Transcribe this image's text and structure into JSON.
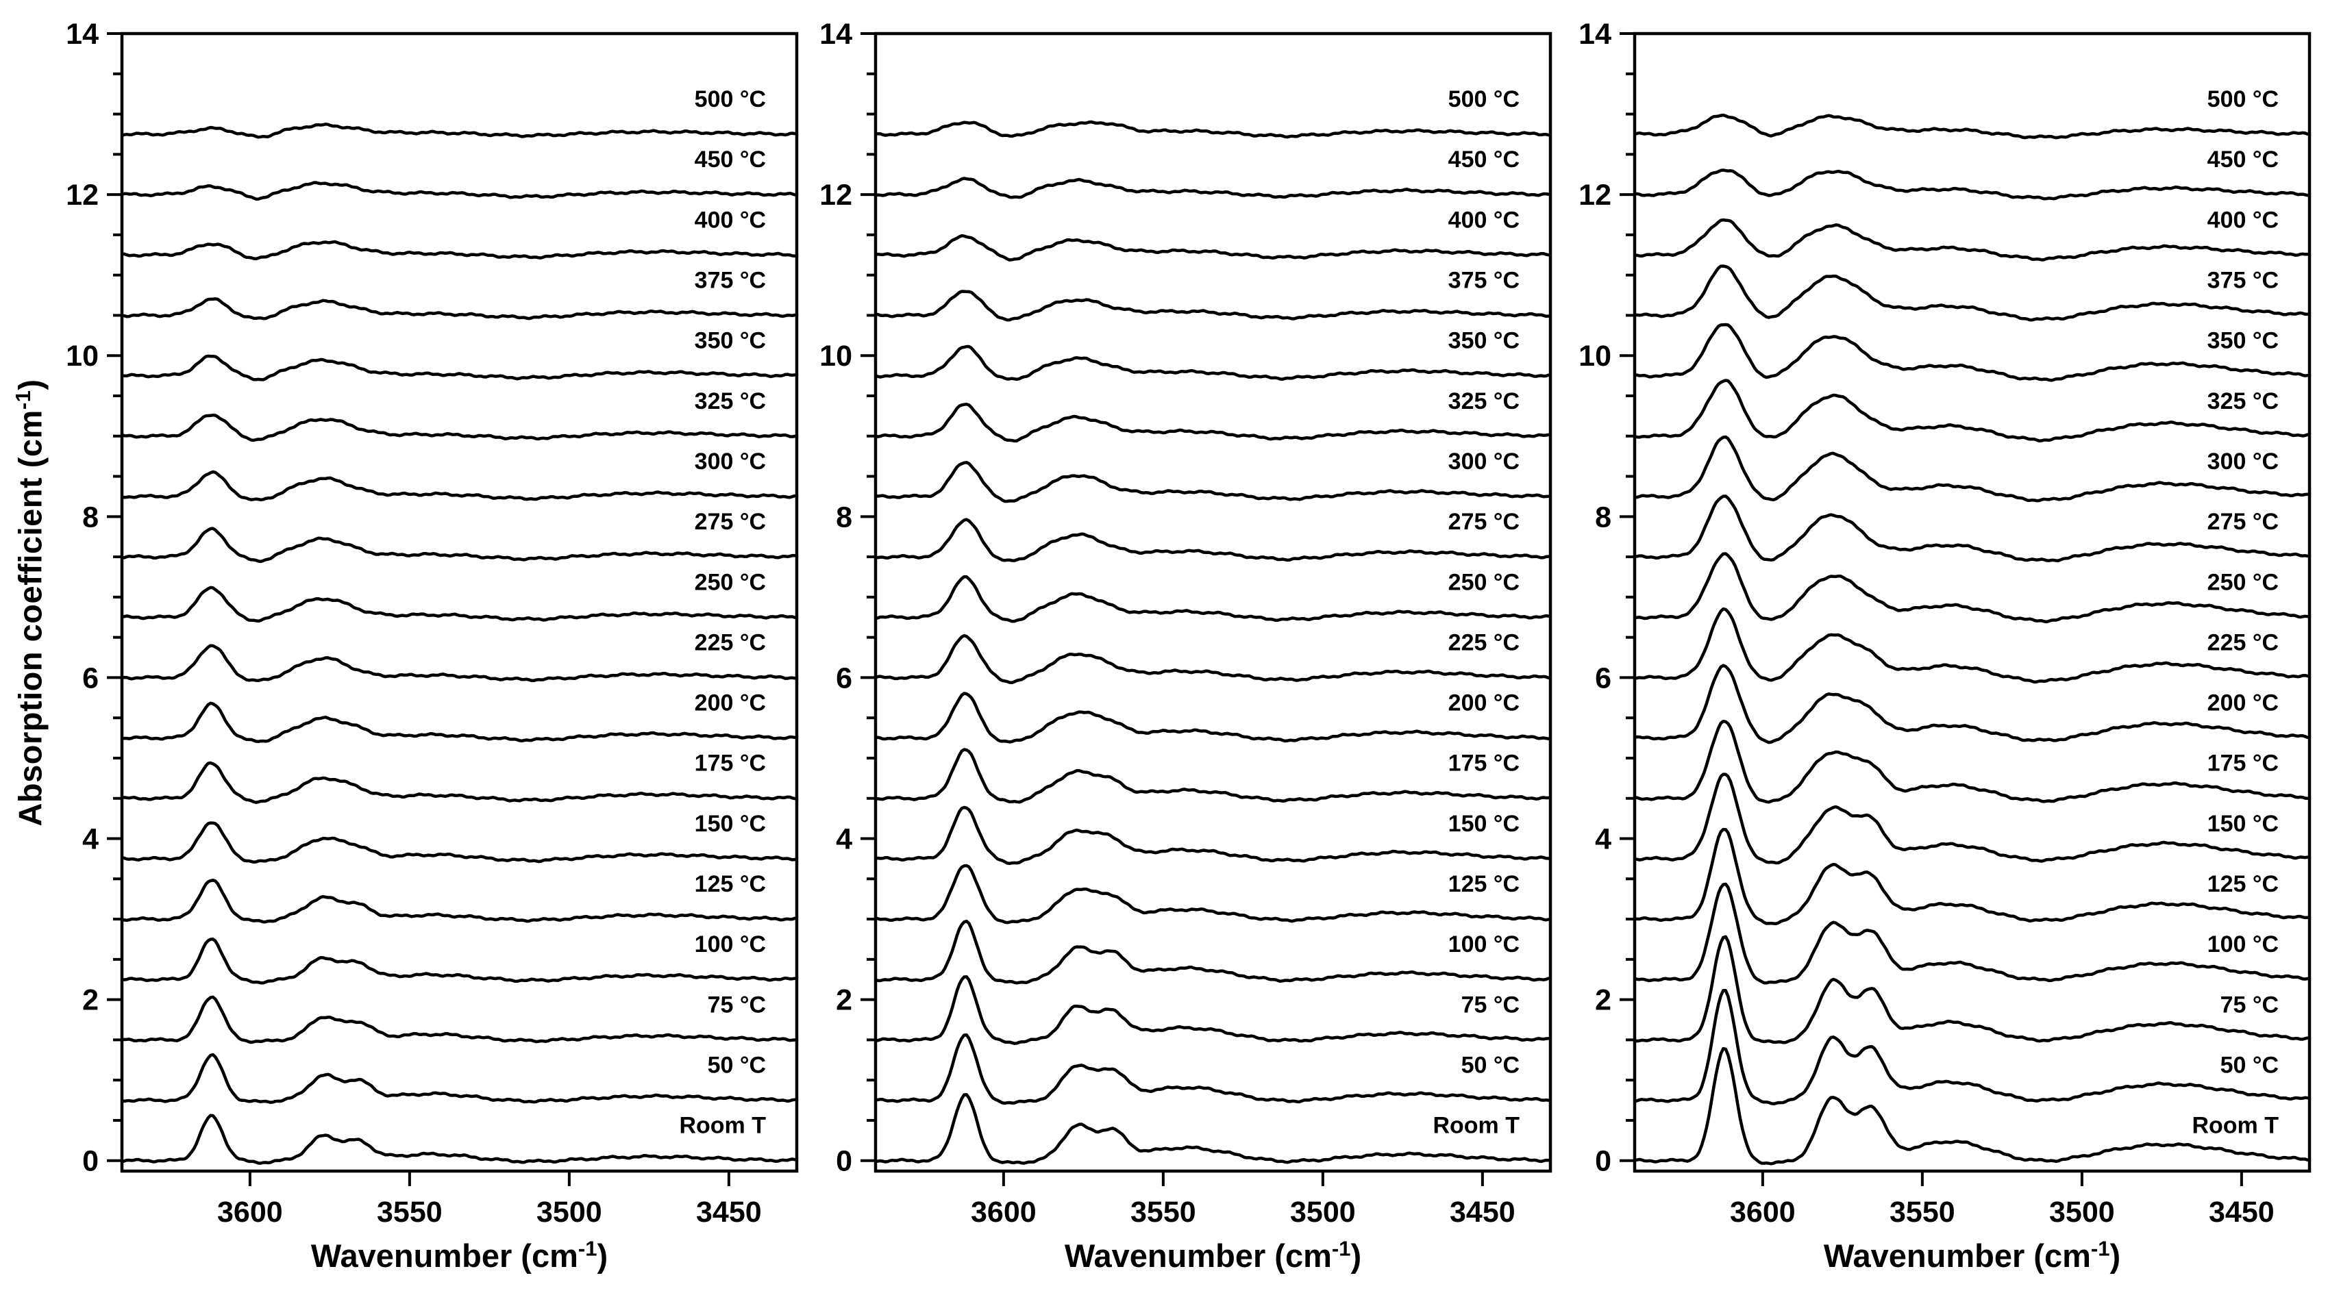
{
  "figure": {
    "background": "#ffffff",
    "text_color": "#000000",
    "ylabel": {
      "prefix": "Absorption coefficient (cm",
      "sup": "-1",
      "suffix": ")"
    },
    "xlabel": {
      "prefix": "Wavenumber (cm",
      "sup": "-1",
      "suffix": ")"
    }
  },
  "chart_data": {
    "type": "line",
    "title": "",
    "xlabel": "Wavenumber (cm⁻¹)",
    "ylabel": "Absorption coefficient (cm⁻¹)",
    "line_color": "#000000",
    "legend_position": "none",
    "grid": false,
    "x_axis": {
      "reversed": true,
      "range": [
        3640,
        3429
      ],
      "ticks": [
        3600,
        3550,
        3500,
        3450
      ],
      "minor_ticks": false
    },
    "y_axis": {
      "range": [
        -0.13,
        14
      ],
      "ticks": [
        0,
        2,
        4,
        6,
        8,
        10,
        12,
        14
      ],
      "minor_step": 0.5
    },
    "temperatures": [
      "Room T",
      "50 °C",
      "75 °C",
      "100 °C",
      "125 °C",
      "150 °C",
      "175 °C",
      "200 °C",
      "225 °C",
      "250 °C",
      "275 °C",
      "300 °C",
      "325 °C",
      "350 °C",
      "375 °C",
      "400 °C",
      "450 °C",
      "500 °C"
    ],
    "offset_step": 0.75,
    "curve_model": "y = offset + sum_components h*exp(-((x-center)/width)^2)",
    "panels": [
      {
        "id": "panel-1",
        "components": [
          {
            "name": "peak-3612",
            "center": 3612,
            "widths": [
              5,
              5,
              5,
              5,
              5.5,
              5.5,
              5.5,
              5.5,
              6,
              6,
              6,
              6,
              6.5,
              6.5,
              6.5,
              7.5,
              8,
              8.5
            ],
            "heights": [
              0.55,
              0.56,
              0.54,
              0.5,
              0.48,
              0.46,
              0.44,
              0.42,
              0.4,
              0.37,
              0.34,
              0.3,
              0.27,
              0.24,
              0.2,
              0.14,
              0.1,
              0.07
            ]
          },
          {
            "name": "dip-3597",
            "center": 3597,
            "width": 6,
            "heights": [
              -0.02,
              -0.02,
              -0.02,
              -0.03,
              -0.03,
              -0.04,
              -0.04,
              -0.05,
              -0.05,
              -0.05,
              -0.06,
              -0.06,
              -0.06,
              -0.06,
              -0.06,
              -0.06,
              -0.06,
              -0.05
            ]
          },
          {
            "name": "peak-3577",
            "center": 3577,
            "widths": [
              6.5,
              6.5,
              6.5,
              7,
              8,
              9,
              10,
              11,
              11,
              12,
              12,
              12,
              12.5,
              13,
              13,
              13,
              13.5,
              14
            ],
            "heights": [
              0.3,
              0.3,
              0.28,
              0.26,
              0.26,
              0.25,
              0.25,
              0.24,
              0.24,
              0.23,
              0.22,
              0.22,
              0.21,
              0.19,
              0.17,
              0.16,
              0.14,
              0.11
            ]
          },
          {
            "name": "peak-3566",
            "center": 3566,
            "width": 6,
            "heights": [
              0.22,
              0.22,
              0.2,
              0.18,
              0.14,
              0.1,
              0.06,
              0.04,
              0,
              0,
              0,
              0,
              0,
              0,
              0,
              0,
              0,
              0
            ]
          },
          {
            "name": "shoulder-3543",
            "center": 3543,
            "width": 18,
            "heights": [
              0.08,
              0.08,
              0.07,
              0.06,
              0.05,
              0.05,
              0.04,
              0.04,
              0.03,
              0.03,
              0.03,
              0.03,
              0.02,
              0.02,
              0.02,
              0.02,
              0.02,
              0.02
            ]
          },
          {
            "name": "broad-3474",
            "center": 3474,
            "width": 26,
            "heights": [
              0.05,
              0.05,
              0.05,
              0.05,
              0.05,
              0.05,
              0.05,
              0.05,
              0.04,
              0.04,
              0.04,
              0.04,
              0.04,
              0.04,
              0.04,
              0.04,
              0.03,
              0.03
            ]
          },
          {
            "name": "dip-3512",
            "center": 3512,
            "width": 16,
            "heights": [
              -0.02,
              -0.02,
              -0.02,
              -0.02,
              -0.02,
              -0.03,
              -0.03,
              -0.03,
              -0.03,
              -0.03,
              -0.03,
              -0.03,
              -0.03,
              -0.03,
              -0.03,
              -0.03,
              -0.03,
              -0.02
            ]
          }
        ]
      },
      {
        "id": "panel-2",
        "components": [
          {
            "name": "peak-3612",
            "center": 3612,
            "widths": [
              5,
              5,
              5,
              5,
              5.5,
              5.5,
              5.5,
              5.5,
              6,
              6,
              6,
              6,
              6.5,
              6.5,
              6.5,
              7.5,
              8,
              8.5
            ],
            "heights": [
              0.82,
              0.82,
              0.78,
              0.72,
              0.68,
              0.64,
              0.6,
              0.56,
              0.52,
              0.49,
              0.46,
              0.43,
              0.39,
              0.36,
              0.31,
              0.23,
              0.19,
              0.15
            ]
          },
          {
            "name": "dip-3597",
            "center": 3597,
            "width": 6,
            "heights": [
              -0.03,
              -0.03,
              -0.03,
              -0.04,
              -0.04,
              -0.05,
              -0.05,
              -0.06,
              -0.06,
              -0.06,
              -0.07,
              -0.07,
              -0.07,
              -0.07,
              -0.07,
              -0.07,
              -0.06,
              -0.05
            ]
          },
          {
            "name": "peak-3577",
            "center": 3577,
            "widths": [
              6.5,
              6.5,
              6.5,
              7,
              8,
              9,
              10,
              11,
              11,
              12,
              12,
              12,
              12.5,
              13,
              13,
              13,
              13.5,
              14
            ],
            "heights": [
              0.42,
              0.42,
              0.4,
              0.38,
              0.36,
              0.34,
              0.32,
              0.31,
              0.29,
              0.28,
              0.27,
              0.26,
              0.23,
              0.21,
              0.19,
              0.18,
              0.17,
              0.13
            ]
          },
          {
            "name": "peak-3566",
            "center": 3566,
            "width": 6,
            "heights": [
              0.33,
              0.33,
              0.31,
              0.28,
              0.22,
              0.17,
              0.12,
              0.08,
              0.04,
              0,
              0,
              0,
              0,
              0,
              0,
              0,
              0,
              0.05
            ]
          },
          {
            "name": "shoulder-3543",
            "center": 3543,
            "width": 20,
            "heights": [
              0.16,
              0.16,
              0.15,
              0.14,
              0.12,
              0.11,
              0.1,
              0.09,
              0.08,
              0.07,
              0.07,
              0.06,
              0.06,
              0.05,
              0.05,
              0.05,
              0.04,
              0.04
            ]
          },
          {
            "name": "broad-3474",
            "center": 3474,
            "width": 26,
            "heights": [
              0.08,
              0.08,
              0.08,
              0.08,
              0.08,
              0.08,
              0.07,
              0.07,
              0.07,
              0.06,
              0.06,
              0.06,
              0.06,
              0.06,
              0.05,
              0.05,
              0.05,
              0.04
            ]
          },
          {
            "name": "dip-3512",
            "center": 3512,
            "width": 16,
            "heights": [
              -0.03,
              -0.03,
              -0.03,
              -0.03,
              -0.03,
              -0.04,
              -0.04,
              -0.04,
              -0.04,
              -0.04,
              -0.04,
              -0.04,
              -0.04,
              -0.04,
              -0.04,
              -0.04,
              -0.03,
              -0.03
            ]
          }
        ]
      },
      {
        "id": "panel-3",
        "components": [
          {
            "name": "peak-3612",
            "center": 3612,
            "widths": [
              5,
              5,
              5,
              5.5,
              5.5,
              6,
              6,
              6.5,
              6.5,
              7,
              7,
              7,
              7.5,
              7.5,
              7.5,
              8.5,
              9,
              9.5
            ],
            "heights": [
              1.4,
              1.36,
              1.28,
              1.2,
              1.12,
              1.05,
              0.97,
              0.9,
              0.84,
              0.79,
              0.76,
              0.73,
              0.69,
              0.65,
              0.61,
              0.43,
              0.31,
              0.23
            ]
          },
          {
            "name": "dip-3597",
            "center": 3597,
            "width": 7,
            "heights": [
              -0.03,
              -0.03,
              -0.03,
              -0.04,
              -0.05,
              -0.06,
              -0.06,
              -0.07,
              -0.07,
              -0.08,
              -0.08,
              -0.08,
              -0.08,
              -0.08,
              -0.08,
              -0.08,
              -0.07,
              -0.06
            ]
          },
          {
            "name": "peak-3578",
            "center": 3578,
            "widths": [
              6.5,
              6.5,
              6.5,
              7,
              8,
              9,
              10,
              11,
              12,
              12,
              12,
              12,
              12.5,
              13,
              13,
              13,
              13.5,
              14
            ],
            "heights": [
              0.78,
              0.76,
              0.73,
              0.7,
              0.66,
              0.62,
              0.57,
              0.54,
              0.52,
              0.51,
              0.52,
              0.52,
              0.5,
              0.49,
              0.48,
              0.36,
              0.29,
              0.22
            ]
          },
          {
            "name": "peak-3566",
            "center": 3566,
            "width": 6,
            "heights": [
              0.62,
              0.6,
              0.58,
              0.55,
              0.46,
              0.38,
              0.28,
              0.18,
              0.1,
              0.05,
              0,
              0,
              0,
              0,
              0,
              0,
              0,
              0
            ]
          },
          {
            "name": "shoulder-3541",
            "center": 3541,
            "width": 18,
            "heights": [
              0.24,
              0.23,
              0.22,
              0.21,
              0.19,
              0.18,
              0.17,
              0.16,
              0.15,
              0.15,
              0.15,
              0.14,
              0.13,
              0.13,
              0.12,
              0.09,
              0.07,
              0.06
            ]
          },
          {
            "name": "broad-3474",
            "center": 3474,
            "width": 28,
            "heights": [
              0.2,
              0.2,
              0.2,
              0.2,
              0.19,
              0.19,
              0.18,
              0.18,
              0.17,
              0.17,
              0.16,
              0.16,
              0.16,
              0.15,
              0.14,
              0.1,
              0.08,
              0.06
            ]
          },
          {
            "name": "dip-3512",
            "center": 3512,
            "width": 18,
            "heights": [
              -0.05,
              -0.05,
              -0.05,
              -0.05,
              -0.06,
              -0.06,
              -0.07,
              -0.07,
              -0.08,
              -0.08,
              -0.08,
              -0.08,
              -0.08,
              -0.08,
              -0.08,
              -0.07,
              -0.06,
              -0.05
            ]
          }
        ]
      }
    ]
  }
}
